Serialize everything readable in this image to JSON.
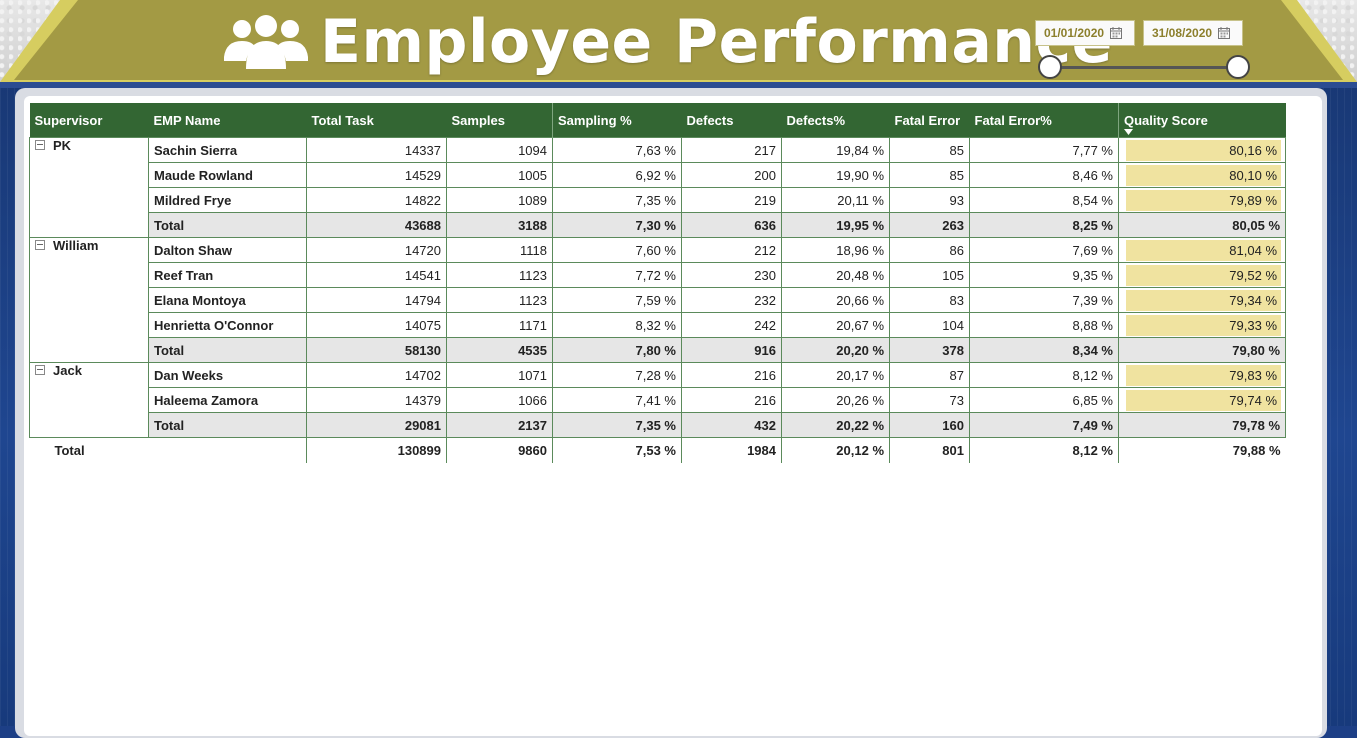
{
  "header": {
    "title": "Employee Performance",
    "date_start": "01/01/2020",
    "date_end": "31/08/2020",
    "colors": {
      "banner": "#a39a44",
      "accent": "#d4ca5e",
      "table_header": "#336633",
      "quality_bar": "#f0e3a0"
    }
  },
  "table": {
    "columns": [
      "Supervisor",
      "EMP Name",
      "Total Task",
      "Samples",
      "Sampling %",
      "Defects",
      "Defects%",
      "Fatal Error",
      "Fatal Error%",
      "Quality Score"
    ],
    "groups": [
      {
        "supervisor": "PK",
        "rows": [
          [
            "Sachin Sierra",
            "14337",
            "1094",
            "7,63 %",
            "217",
            "19,84 %",
            "85",
            "7,77 %",
            "80,16 %"
          ],
          [
            "Maude Rowland",
            "14529",
            "1005",
            "6,92 %",
            "200",
            "19,90 %",
            "85",
            "8,46 %",
            "80,10 %"
          ],
          [
            "Mildred Frye",
            "14822",
            "1089",
            "7,35 %",
            "219",
            "20,11 %",
            "93",
            "8,54 %",
            "79,89 %"
          ]
        ],
        "total": [
          "Total",
          "43688",
          "3188",
          "7,30 %",
          "636",
          "19,95 %",
          "263",
          "8,25 %",
          "80,05 %"
        ]
      },
      {
        "supervisor": "William",
        "rows": [
          [
            "Dalton Shaw",
            "14720",
            "1118",
            "7,60 %",
            "212",
            "18,96 %",
            "86",
            "7,69 %",
            "81,04 %"
          ],
          [
            "Reef Tran",
            "14541",
            "1123",
            "7,72 %",
            "230",
            "20,48 %",
            "105",
            "9,35 %",
            "79,52 %"
          ],
          [
            "Elana Montoya",
            "14794",
            "1123",
            "7,59 %",
            "232",
            "20,66 %",
            "83",
            "7,39 %",
            "79,34 %"
          ],
          [
            "Henrietta O'Connor",
            "14075",
            "1171",
            "8,32 %",
            "242",
            "20,67 %",
            "104",
            "8,88 %",
            "79,33 %"
          ]
        ],
        "total": [
          "Total",
          "58130",
          "4535",
          "7,80 %",
          "916",
          "20,20 %",
          "378",
          "8,34 %",
          "79,80 %"
        ]
      },
      {
        "supervisor": "Jack",
        "rows": [
          [
            "Dan Weeks",
            "14702",
            "1071",
            "7,28 %",
            "216",
            "20,17 %",
            "87",
            "8,12 %",
            "79,83 %"
          ],
          [
            "Haleema Zamora",
            "14379",
            "1066",
            "7,41 %",
            "216",
            "20,26 %",
            "73",
            "6,85 %",
            "79,74 %"
          ]
        ],
        "total": [
          "Total",
          "29081",
          "2137",
          "7,35 %",
          "432",
          "20,22 %",
          "160",
          "7,49 %",
          "79,78 %"
        ]
      }
    ],
    "grand_total": [
      "Total",
      "130899",
      "9860",
      "7,53 %",
      "1984",
      "20,12 %",
      "801",
      "8,12 %",
      "79,88 %"
    ]
  }
}
